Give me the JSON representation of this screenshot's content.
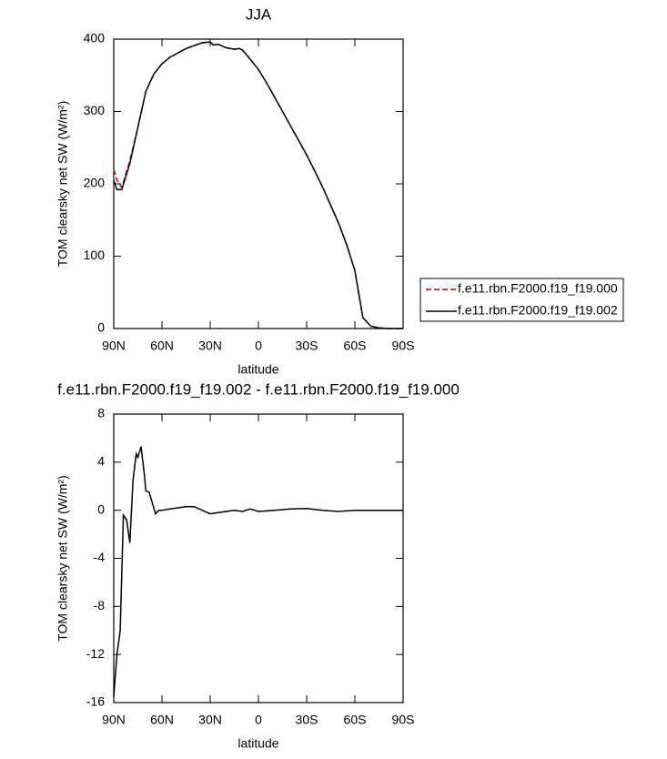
{
  "chart_data": [
    {
      "type": "line",
      "title": "JJA",
      "xlabel": "latitude",
      "ylabel": "TOM clearsky net SW (W/m²)",
      "x": [
        90,
        88,
        85,
        80,
        75,
        70,
        65,
        60,
        55,
        50,
        45,
        40,
        35,
        30,
        28,
        25,
        20,
        15,
        12,
        10,
        5,
        0,
        -5,
        -10,
        -15,
        -20,
        -25,
        -30,
        -35,
        -40,
        -45,
        -50,
        -55,
        -60,
        -65,
        -70,
        -75,
        -80,
        -85,
        -90
      ],
      "series": [
        {
          "name": "f.e11.rbn.F2000.f19_f19.000",
          "color": "#cc0000",
          "style": "dashed",
          "values": [
            220,
            205,
            195,
            232,
            278,
            328,
            352,
            366,
            375,
            381,
            387,
            391,
            395,
            396,
            392,
            393,
            388,
            386,
            387,
            385,
            372,
            358,
            340,
            320,
            300,
            280,
            260,
            240,
            218,
            195,
            170,
            145,
            115,
            80,
            15,
            3,
            1,
            0,
            0,
            0
          ]
        },
        {
          "name": "f.e11.rbn.F2000.f19_f19.002",
          "color": "#000000",
          "style": "solid",
          "values": [
            205,
            192,
            192,
            228,
            278,
            328,
            352,
            366,
            375,
            381,
            387,
            391,
            395,
            396,
            392,
            393,
            388,
            386,
            387,
            385,
            372,
            358,
            340,
            320,
            300,
            280,
            260,
            240,
            218,
            195,
            170,
            145,
            115,
            80,
            15,
            3,
            1,
            0,
            0,
            0
          ]
        }
      ],
      "xlim": [
        90,
        -90
      ],
      "xticks": [
        {
          "value": 90,
          "label": "90N"
        },
        {
          "value": 60,
          "label": "60N"
        },
        {
          "value": 30,
          "label": "30N"
        },
        0,
        {
          "value": -30,
          "label": "30S"
        },
        {
          "value": -60,
          "label": "60S"
        },
        {
          "value": -90,
          "label": "90S"
        }
      ],
      "ylim": [
        0,
        400
      ],
      "yticks": [
        0,
        100,
        200,
        300,
        400
      ],
      "legend": "right"
    },
    {
      "type": "line",
      "title": "f.e11.rbn.F2000.f19_f19.002 - f.e11.rbn.F2000.f19_f19.000",
      "xlabel": "latitude",
      "ylabel": "TOM clearsky net SW (W/m²)",
      "x": [
        90,
        88,
        86,
        84,
        82,
        80,
        78,
        76,
        75,
        73,
        71,
        70,
        68,
        66,
        64,
        62,
        60,
        55,
        50,
        45,
        40,
        35,
        30,
        25,
        20,
        15,
        10,
        5,
        0,
        -10,
        -20,
        -30,
        -40,
        -50,
        -60,
        -70,
        -80,
        -90
      ],
      "series": [
        {
          "color": "#000000",
          "style": "solid",
          "values": [
            -15.5,
            -12,
            -10,
            -0.4,
            -0.8,
            -2.7,
            2.5,
            4.7,
            4.4,
            5.3,
            3,
            1.6,
            1.5,
            0.6,
            -0.3,
            0,
            0,
            0.1,
            0.2,
            0.3,
            0.3,
            0,
            -0.3,
            -0.2,
            -0.1,
            0,
            -0.1,
            0.1,
            -0.1,
            0,
            0.1,
            0.15,
            0,
            -0.1,
            0,
            0,
            0,
            0
          ]
        }
      ],
      "xlim": [
        90,
        -90
      ],
      "xticks": [
        {
          "value": 90,
          "label": "90N"
        },
        {
          "value": 60,
          "label": "60N"
        },
        {
          "value": 30,
          "label": "30N"
        },
        0,
        {
          "value": -30,
          "label": "30S"
        },
        {
          "value": -60,
          "label": "60S"
        },
        {
          "value": -90,
          "label": "90S"
        }
      ],
      "ylim": [
        -16,
        8
      ],
      "yticks": [
        -16,
        -12,
        -8,
        -4,
        0,
        4,
        8
      ]
    }
  ]
}
